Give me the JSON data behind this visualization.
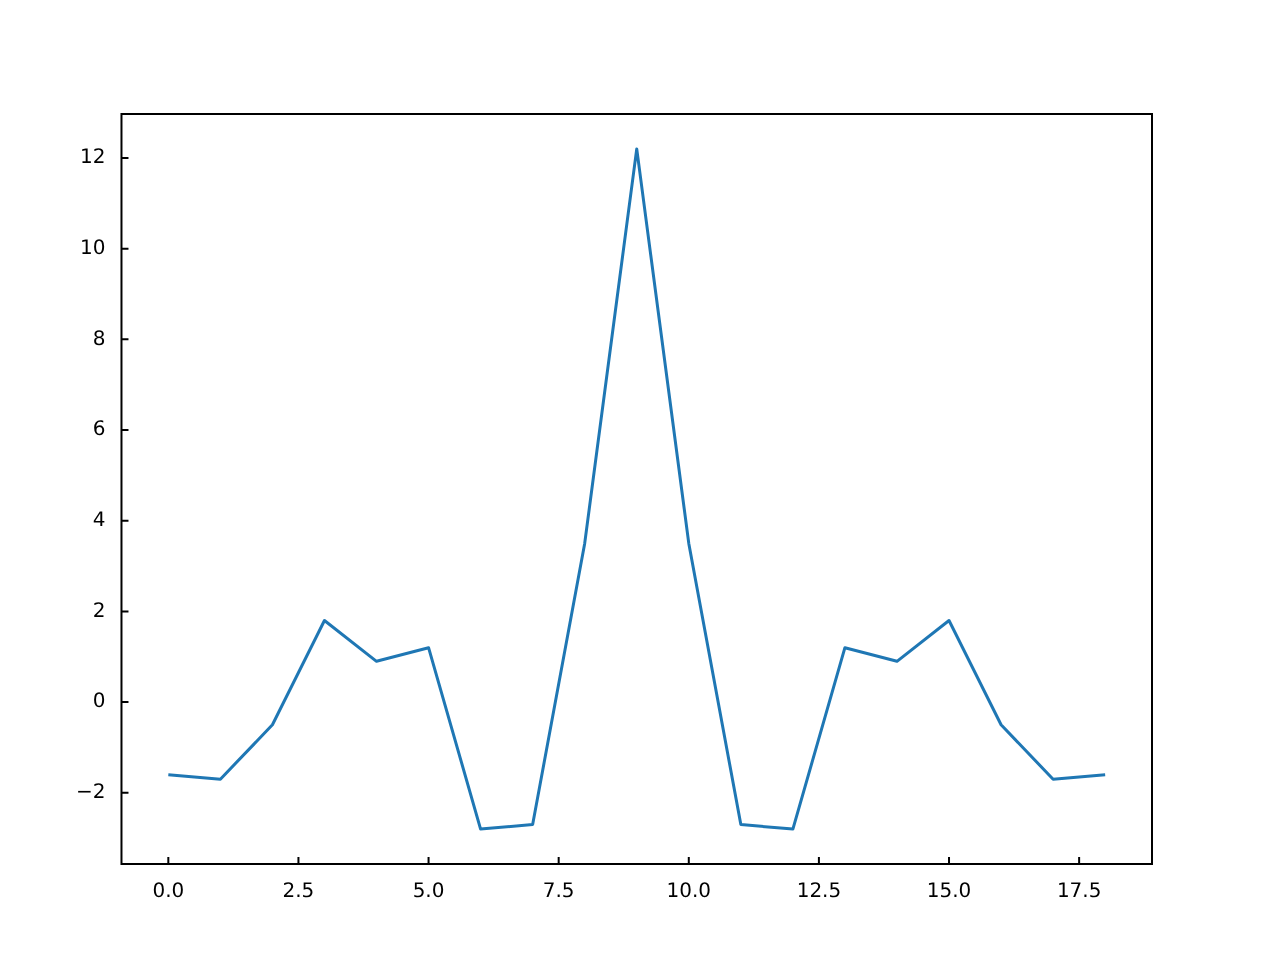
{
  "chart_data": {
    "type": "line",
    "x": [
      0,
      1,
      2,
      3,
      4,
      5,
      6,
      7,
      8,
      9,
      10,
      11,
      12,
      13,
      14,
      15,
      16,
      17,
      18
    ],
    "series": [
      {
        "color": "#1f77b4",
        "values": [
          -1.6,
          -1.7,
          -0.5,
          1.8,
          0.9,
          1.2,
          -2.8,
          -2.7,
          3.5,
          12.2,
          3.5,
          -2.7,
          -2.8,
          1.2,
          0.9,
          1.8,
          -0.5,
          -1.7,
          -1.6
        ]
      }
    ],
    "xlim": [
      -0.9,
      18.9
    ],
    "xticks": [
      {
        "value": 0,
        "label": "0.0"
      },
      2.5,
      {
        "value": 5,
        "label": "5.0"
      },
      7.5,
      {
        "value": 10,
        "label": "10.0"
      },
      12.5,
      {
        "value": 15,
        "label": "15.0"
      },
      17.5
    ],
    "ylim": [
      -3.57,
      12.97
    ],
    "yticks": [
      -2,
      0,
      2,
      4,
      6,
      8,
      10,
      12
    ],
    "grid": false,
    "legend": false,
    "marker": "none",
    "line_style": "solid"
  }
}
